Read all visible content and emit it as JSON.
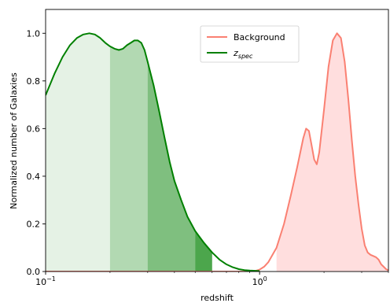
{
  "chart_data": {
    "type": "area",
    "xlabel": "redshift",
    "ylabel": "Normalized number of Galaxies",
    "xscale": "log",
    "xlim": [
      0.1,
      4.0
    ],
    "ylim": [
      0.0,
      1.1
    ],
    "x_ticks": [
      {
        "value": 0.1,
        "base": "10",
        "exp": "−1"
      },
      {
        "value": 1.0,
        "base": "10",
        "exp": "0"
      }
    ],
    "y_ticks": [
      {
        "value": 0.0,
        "label": "0.0"
      },
      {
        "value": 0.2,
        "label": "0.2"
      },
      {
        "value": 0.4,
        "label": "0.4"
      },
      {
        "value": 0.6,
        "label": "0.6"
      },
      {
        "value": 0.8,
        "label": "0.8"
      },
      {
        "value": 1.0,
        "label": "1.0"
      }
    ],
    "legend": {
      "placement": "upper-center",
      "entries": [
        {
          "label": "Background",
          "color": "#fa8072"
        },
        {
          "label": "z",
          "subscript": "spec",
          "color": "#008000"
        }
      ]
    },
    "series": [
      {
        "name": "Background",
        "color": "#fa8072",
        "fill": "#ffdede",
        "x": [
          0.1,
          0.5,
          0.85,
          0.95,
          1.0,
          1.05,
          1.1,
          1.2,
          1.3,
          1.4,
          1.5,
          1.6,
          1.65,
          1.7,
          1.75,
          1.8,
          1.85,
          1.9,
          2.0,
          2.1,
          2.2,
          2.3,
          2.4,
          2.5,
          2.6,
          2.7,
          2.8,
          2.9,
          3.0,
          3.1,
          3.2,
          3.3,
          3.4,
          3.5,
          3.6,
          3.7,
          3.8,
          3.9,
          4.0
        ],
        "y": [
          0.0,
          0.0,
          0.0,
          0.002,
          0.008,
          0.02,
          0.04,
          0.1,
          0.2,
          0.32,
          0.44,
          0.56,
          0.6,
          0.59,
          0.53,
          0.47,
          0.45,
          0.5,
          0.68,
          0.86,
          0.97,
          1.0,
          0.98,
          0.88,
          0.72,
          0.55,
          0.4,
          0.28,
          0.18,
          0.11,
          0.08,
          0.07,
          0.065,
          0.06,
          0.05,
          0.03,
          0.02,
          0.01,
          0.005
        ],
        "fill_from_x": 1.2
      },
      {
        "name": "z_spec",
        "color": "#008000",
        "x": [
          0.1,
          0.11,
          0.12,
          0.13,
          0.14,
          0.15,
          0.16,
          0.17,
          0.18,
          0.19,
          0.2,
          0.21,
          0.22,
          0.23,
          0.24,
          0.25,
          0.26,
          0.27,
          0.28,
          0.29,
          0.3,
          0.32,
          0.34,
          0.36,
          0.38,
          0.4,
          0.43,
          0.46,
          0.5,
          0.55,
          0.6,
          0.65,
          0.7,
          0.75,
          0.8,
          0.85,
          0.9,
          1.0
        ],
        "y": [
          0.74,
          0.83,
          0.9,
          0.95,
          0.98,
          0.995,
          1.0,
          0.995,
          0.98,
          0.96,
          0.945,
          0.935,
          0.93,
          0.935,
          0.95,
          0.96,
          0.97,
          0.97,
          0.96,
          0.93,
          0.88,
          0.78,
          0.67,
          0.56,
          0.46,
          0.38,
          0.3,
          0.23,
          0.17,
          0.12,
          0.08,
          0.05,
          0.03,
          0.018,
          0.01,
          0.006,
          0.004,
          0.002
        ]
      }
    ],
    "shaded_bands": [
      {
        "x_start": 0.1,
        "x_end": 0.2,
        "color": "#008000",
        "opacity": 0.1
      },
      {
        "x_start": 0.2,
        "x_end": 0.3,
        "color": "#008000",
        "opacity": 0.3
      },
      {
        "x_start": 0.3,
        "x_end": 0.5,
        "color": "#008000",
        "opacity": 0.5
      },
      {
        "x_start": 0.5,
        "x_end": 0.6,
        "color": "#008000",
        "opacity": 0.7
      }
    ]
  }
}
